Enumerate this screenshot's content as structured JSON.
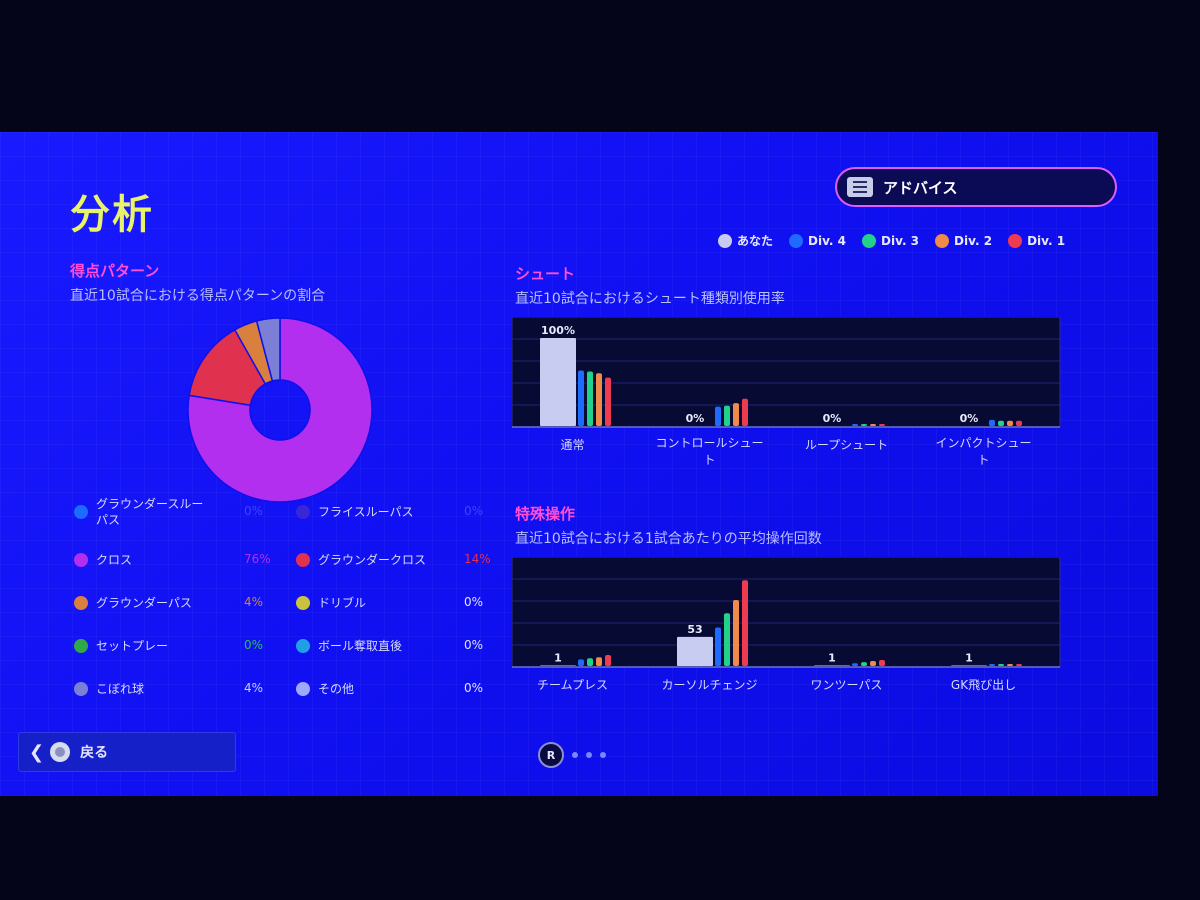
{
  "page": {
    "title": "分析"
  },
  "advice_button": {
    "label": "アドバイス",
    "icon": "menu-list-icon"
  },
  "legend": [
    {
      "label": "あなた",
      "color": "#c8ccf0"
    },
    {
      "label": "Div. 4",
      "color": "#1e6bff"
    },
    {
      "label": "Div. 3",
      "color": "#22d18a"
    },
    {
      "label": "Div. 2",
      "color": "#f08a4b"
    },
    {
      "label": "Div. 1",
      "color": "#ef3b52"
    }
  ],
  "scoring": {
    "title": "得点パターン",
    "subtitle": "直近10試合における得点パターンの割合",
    "chart_data": {
      "type": "pie",
      "title": "得点パターン",
      "slices": [
        {
          "label": "グラウンダースルーパス",
          "value": 0,
          "display": "0%",
          "color": "#1e6bff"
        },
        {
          "label": "フライスルーパス",
          "value": 0,
          "display": "0%",
          "color": "#3a26d9"
        },
        {
          "label": "クロス",
          "value": 76,
          "display": "76%",
          "color": "#b22ff0"
        },
        {
          "label": "グラウンダークロス",
          "value": 14,
          "display": "14%",
          "color": "#e0314e"
        },
        {
          "label": "グラウンダーパス",
          "value": 4,
          "display": "4%",
          "color": "#d9803e"
        },
        {
          "label": "ドリブル",
          "value": 0,
          "display": "0%",
          "color": "#c9c23e"
        },
        {
          "label": "セットプレー",
          "value": 0,
          "display": "0%",
          "color": "#2fa84a"
        },
        {
          "label": "ボール奪取直後",
          "value": 0,
          "display": "0%",
          "color": "#1fa0e6"
        },
        {
          "label": "こぼれ球",
          "value": 4,
          "display": "4%",
          "color": "#7c7fd6"
        },
        {
          "label": "その他",
          "value": 0,
          "display": "0%",
          "color": "#9ea8ff"
        }
      ]
    }
  },
  "shoot": {
    "title": "シュート",
    "subtitle": "直近10試合におけるシュート種類別使用率",
    "chart_data": {
      "type": "bar",
      "categories": [
        "通常",
        "コントロールシュート",
        "ループシュート",
        "インパクトシュート"
      ],
      "labels": [
        "100%",
        "0%",
        "0%",
        "0%"
      ],
      "ylim": [
        0,
        100
      ],
      "series": [
        {
          "name": "あなた",
          "values": [
            100,
            0,
            0,
            0
          ]
        },
        {
          "name": "Div. 4",
          "values": [
            63,
            22,
            2,
            7
          ]
        },
        {
          "name": "Div. 3",
          "values": [
            62,
            23,
            1.5,
            6
          ]
        },
        {
          "name": "Div. 2",
          "values": [
            60,
            26,
            1,
            6
          ]
        },
        {
          "name": "Div. 1",
          "values": [
            55,
            31,
            1,
            6
          ]
        }
      ]
    }
  },
  "special": {
    "title": "特殊操作",
    "subtitle": "直近10試合における1試合あたりの平均操作回数",
    "chart_data": {
      "type": "bar",
      "categories": [
        "チームプレス",
        "カーソルチェンジ",
        "ワンツーパス",
        "GK飛び出し"
      ],
      "labels": [
        "1",
        "53",
        "1",
        "1"
      ],
      "ylim": [
        0,
        160
      ],
      "series": [
        {
          "name": "あなた",
          "values": [
            1,
            53,
            1,
            1
          ]
        },
        {
          "name": "Div. 4",
          "values": [
            12,
            70,
            5,
            2
          ]
        },
        {
          "name": "Div. 3",
          "values": [
            14,
            96,
            7,
            2
          ]
        },
        {
          "name": "Div. 2",
          "values": [
            16,
            120,
            9,
            2
          ]
        },
        {
          "name": "Div. 1",
          "values": [
            20,
            156,
            11,
            2
          ]
        }
      ]
    }
  },
  "back_button": {
    "label": "戻る"
  },
  "pager": {
    "button": "R",
    "pages": 3
  }
}
